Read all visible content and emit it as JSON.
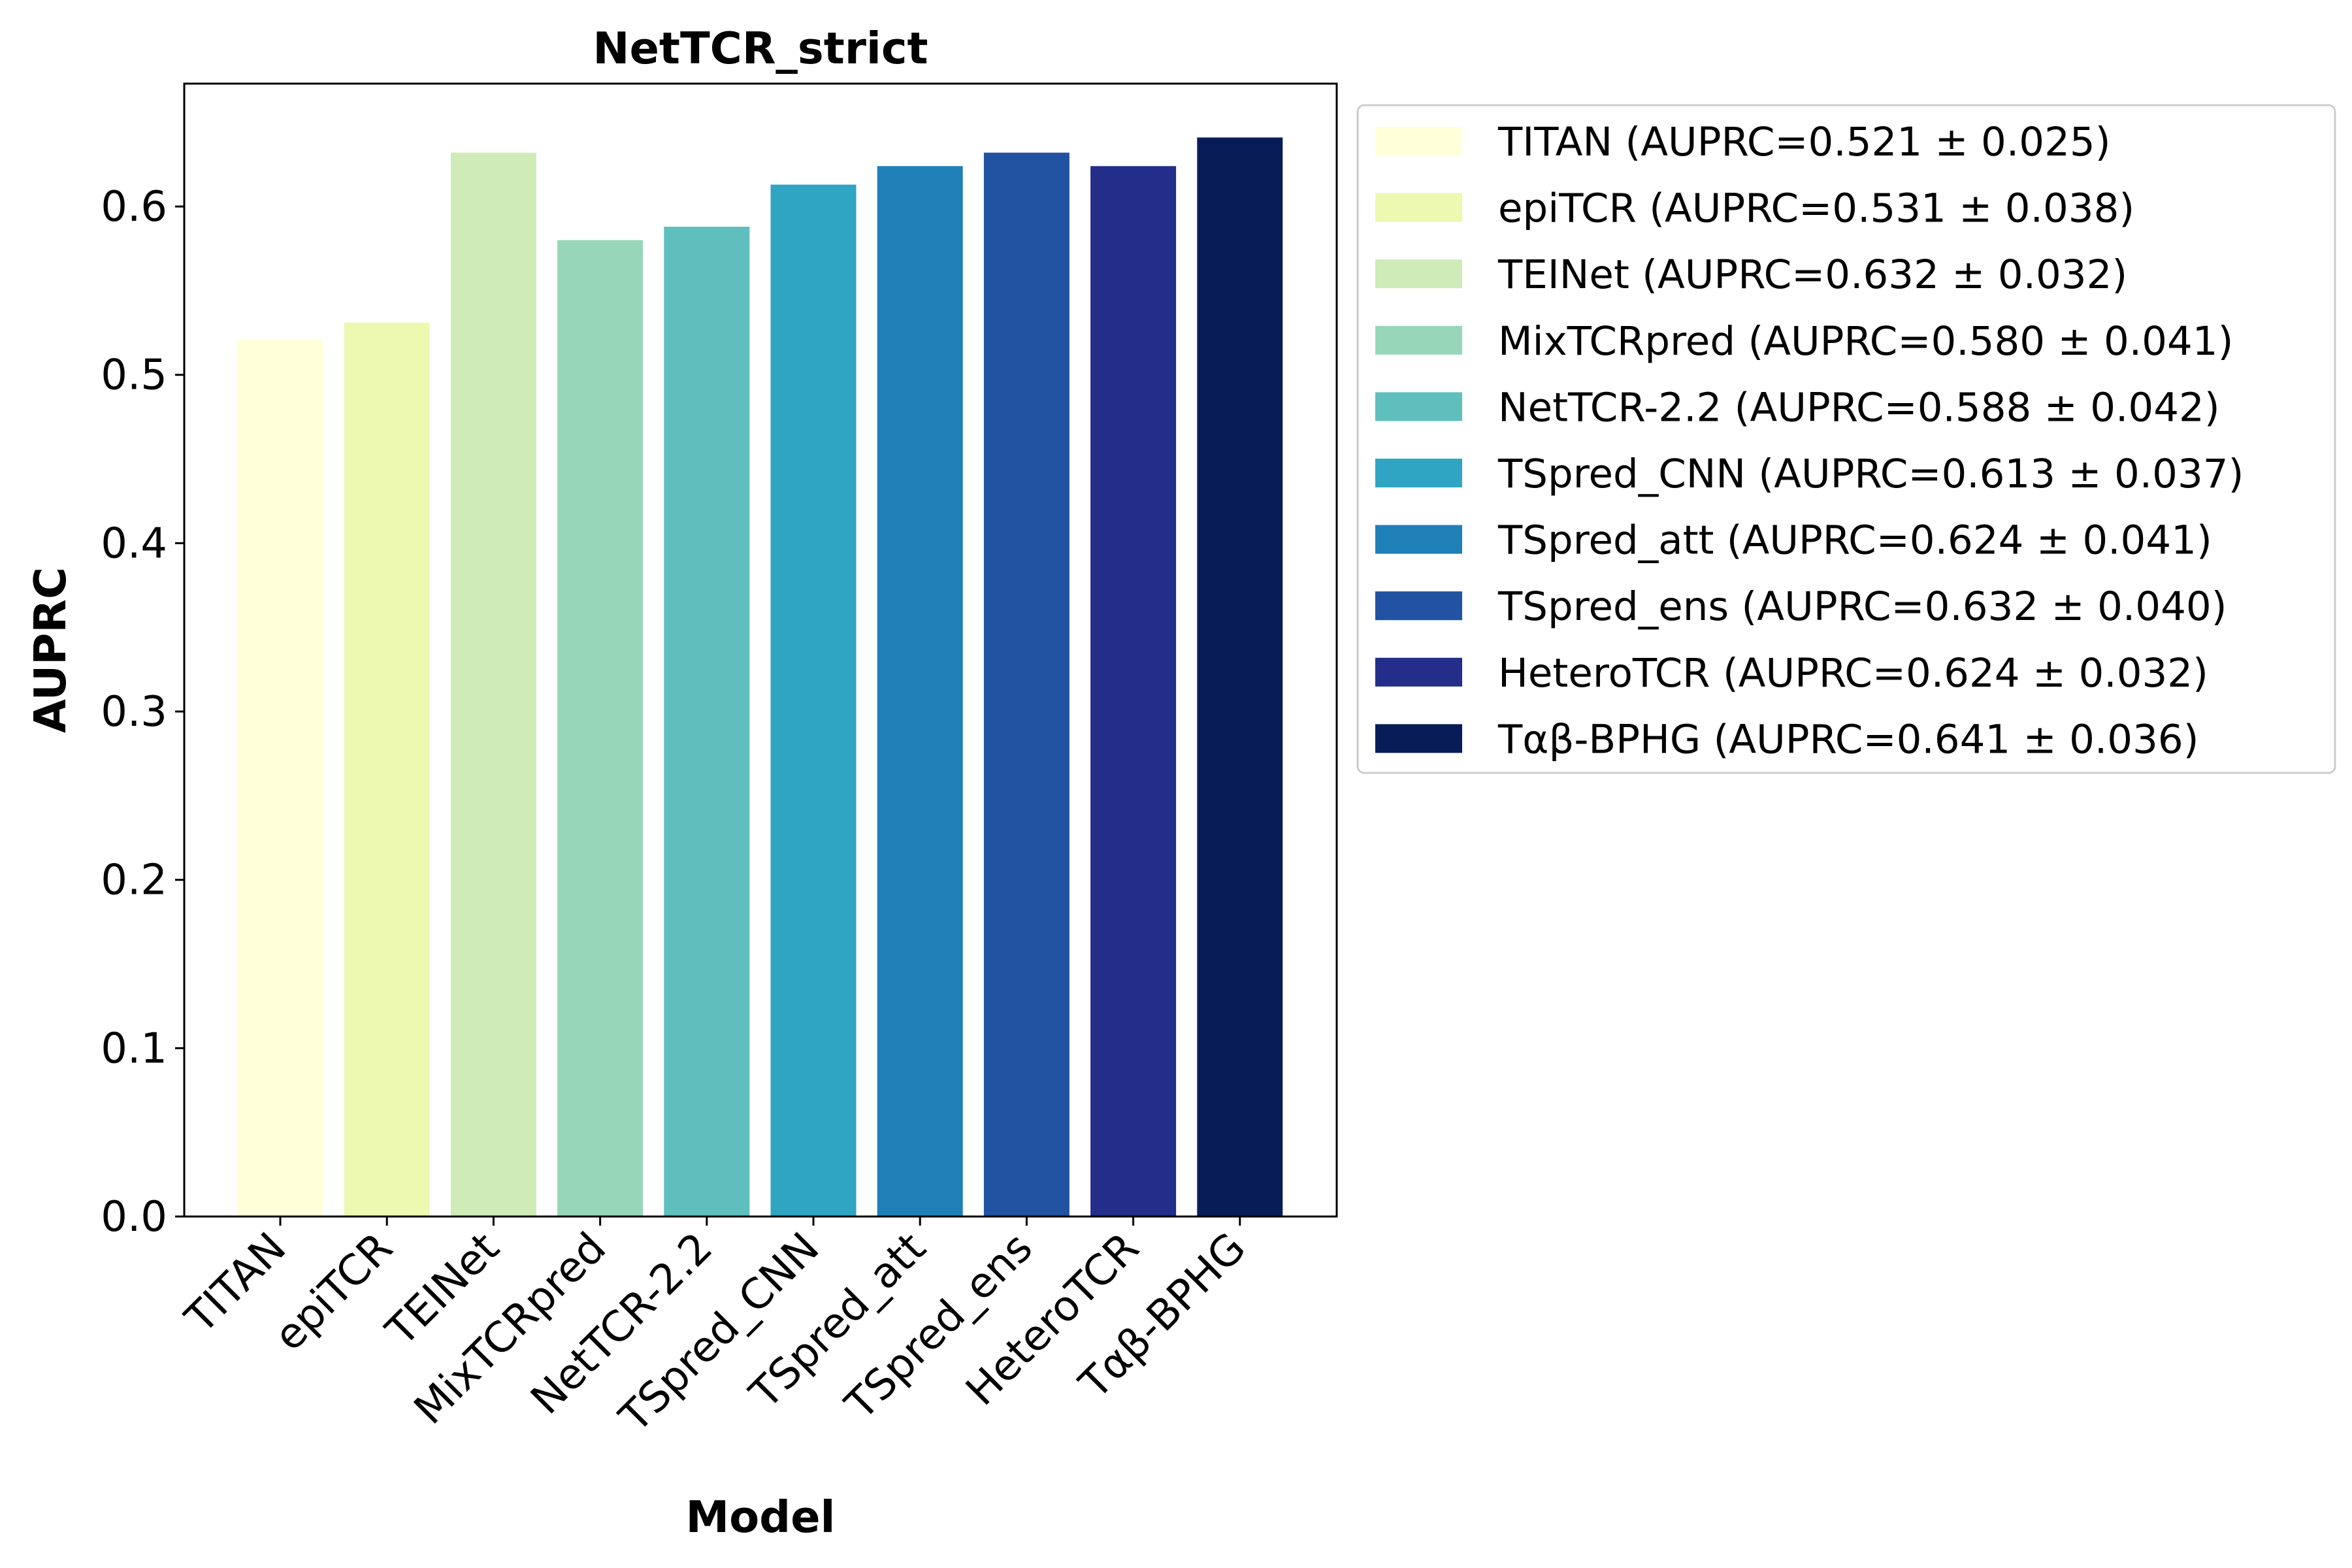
{
  "chart_data": {
    "type": "bar",
    "title": "NetTCR_strict",
    "xlabel": "Model",
    "ylabel": "AUPRC",
    "categories": [
      "TITAN",
      "epiTCR",
      "TEINet",
      "MixTCRpred",
      "NetTCR-2.2",
      "TSpred_CNN",
      "TSpred_att",
      "TSpred_ens",
      "HeteroTCR",
      "Tαβ-BPHG"
    ],
    "values": [
      0.521,
      0.531,
      0.632,
      0.58,
      0.588,
      0.613,
      0.624,
      0.632,
      0.624,
      0.641
    ],
    "colors": [
      "#ffffd9",
      "#edf8b1",
      "#cfebb7",
      "#97d6b9",
      "#5ebfbc",
      "#2fa5c3",
      "#1f80b8",
      "#2253a3",
      "#222e8a",
      "#081d58"
    ],
    "legend": [
      "TITAN (AUPRC=0.521 ± 0.025)",
      "epiTCR (AUPRC=0.531 ± 0.038)",
      "TEINet (AUPRC=0.632 ± 0.032)",
      "MixTCRpred (AUPRC=0.580 ± 0.041)",
      "NetTCR-2.2 (AUPRC=0.588 ± 0.042)",
      "TSpred_CNN (AUPRC=0.613 ± 0.037)",
      "TSpred_att (AUPRC=0.624 ± 0.041)",
      "TSpred_ens (AUPRC=0.632 ± 0.040)",
      "HeteroTCR (AUPRC=0.624 ± 0.032)",
      "Tαβ-BPHG (AUPRC=0.641 ± 0.036)"
    ],
    "yticks": [
      "0.0",
      "0.1",
      "0.2",
      "0.3",
      "0.4",
      "0.5",
      "0.6"
    ],
    "ylim": [
      0,
      0.673
    ],
    "grid": false,
    "legend_position": "outside-right"
  }
}
